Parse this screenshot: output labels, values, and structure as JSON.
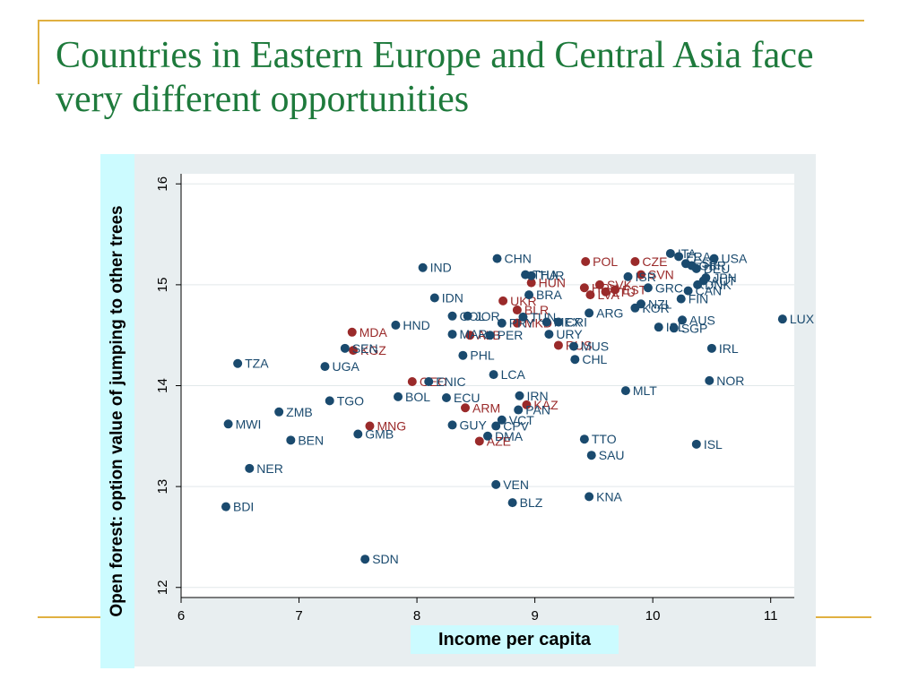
{
  "slide": {
    "title": "Countries in Eastern Europe and Central Asia face very different opportunities"
  },
  "colors": {
    "title": "#1e7a3c",
    "frame": "#e0b040",
    "panel": "#e8eef0",
    "label_box": "#ccfbff",
    "other_countries": "#1a4a6e",
    "eca_countries": "#9a2a2a"
  },
  "chart_data": {
    "type": "scatter",
    "title": "",
    "xlabel": "Income per capita",
    "ylabel": "Open forest: option value of jumping to other trees",
    "xlim": [
      6,
      11.2
    ],
    "ylim": [
      11.9,
      16.1
    ],
    "xticks": [
      6,
      7,
      8,
      9,
      10,
      11
    ],
    "yticks": [
      12,
      13,
      14,
      15,
      16
    ],
    "grid": true,
    "legend": "none",
    "series": [
      {
        "group": "eca",
        "points": [
          {
            "label": "POL",
            "x": 9.43,
            "y": 15.23
          },
          {
            "label": "CZE",
            "x": 9.85,
            "y": 15.23
          },
          {
            "label": "SVN",
            "x": 9.9,
            "y": 15.1
          },
          {
            "label": "HUN",
            "x": 8.97,
            "y": 15.02
          },
          {
            "label": "HRV",
            "x": 9.42,
            "y": 14.97
          },
          {
            "label": "SVK",
            "x": 9.55,
            "y": 15.0
          },
          {
            "label": "EST",
            "x": 9.68,
            "y": 14.95
          },
          {
            "label": "LTU",
            "x": 9.6,
            "y": 14.93
          },
          {
            "label": "LVA",
            "x": 9.47,
            "y": 14.9
          },
          {
            "label": "UKR",
            "x": 8.73,
            "y": 14.84
          },
          {
            "label": "BLR",
            "x": 8.85,
            "y": 14.75
          },
          {
            "label": "MKD",
            "x": 8.85,
            "y": 14.62
          },
          {
            "label": "ALB",
            "x": 8.45,
            "y": 14.5
          },
          {
            "label": "RUS",
            "x": 9.2,
            "y": 14.4
          },
          {
            "label": "MDA",
            "x": 7.45,
            "y": 14.53
          },
          {
            "label": "KGZ",
            "x": 7.46,
            "y": 14.35
          },
          {
            "label": "GEO",
            "x": 7.96,
            "y": 14.04
          },
          {
            "label": "ARM",
            "x": 8.41,
            "y": 13.78
          },
          {
            "label": "KAZ",
            "x": 8.93,
            "y": 13.81
          },
          {
            "label": "MNG",
            "x": 7.6,
            "y": 13.6
          },
          {
            "label": "AZE",
            "x": 8.53,
            "y": 13.45
          }
        ]
      },
      {
        "group": "other",
        "points": [
          {
            "label": "CHN",
            "x": 8.68,
            "y": 15.26
          },
          {
            "label": "IND",
            "x": 8.05,
            "y": 15.17
          },
          {
            "label": "THA",
            "x": 8.92,
            "y": 15.1
          },
          {
            "label": "TUR",
            "x": 8.97,
            "y": 15.09
          },
          {
            "label": "BRA",
            "x": 8.95,
            "y": 14.9
          },
          {
            "label": "IDN",
            "x": 8.15,
            "y": 14.87
          },
          {
            "label": "COL",
            "x": 8.3,
            "y": 14.69
          },
          {
            "label": "JOR",
            "x": 8.43,
            "y": 14.69
          },
          {
            "label": "TUN",
            "x": 8.9,
            "y": 14.68
          },
          {
            "label": "MEX",
            "x": 9.1,
            "y": 14.63
          },
          {
            "label": "CRI",
            "x": 9.2,
            "y": 14.63
          },
          {
            "label": "ARG",
            "x": 9.46,
            "y": 14.72
          },
          {
            "label": "PRY",
            "x": 8.72,
            "y": 14.62
          },
          {
            "label": "HND",
            "x": 7.82,
            "y": 14.6
          },
          {
            "label": "MAR",
            "x": 8.3,
            "y": 14.51
          },
          {
            "label": "PER",
            "x": 8.62,
            "y": 14.5
          },
          {
            "label": "URY",
            "x": 9.12,
            "y": 14.51
          },
          {
            "label": "MUS",
            "x": 9.33,
            "y": 14.39
          },
          {
            "label": "CHL",
            "x": 9.34,
            "y": 14.26
          },
          {
            "label": "SEN",
            "x": 7.39,
            "y": 14.37
          },
          {
            "label": "PHL",
            "x": 8.39,
            "y": 14.3
          },
          {
            "label": "TZA",
            "x": 6.48,
            "y": 14.22
          },
          {
            "label": "UGA",
            "x": 7.22,
            "y": 14.19
          },
          {
            "label": "LCA",
            "x": 8.65,
            "y": 14.11
          },
          {
            "label": "ENIC",
            "x": 8.1,
            "y": 14.04
          },
          {
            "label": "BOL",
            "x": 7.84,
            "y": 13.89
          },
          {
            "label": "ECU",
            "x": 8.25,
            "y": 13.88
          },
          {
            "label": "IRN",
            "x": 8.87,
            "y": 13.9
          },
          {
            "label": "TGO",
            "x": 7.26,
            "y": 13.85
          },
          {
            "label": "PAN",
            "x": 8.86,
            "y": 13.76
          },
          {
            "label": "ZMB",
            "x": 6.83,
            "y": 13.74
          },
          {
            "label": "VCT",
            "x": 8.72,
            "y": 13.66
          },
          {
            "label": "CPV",
            "x": 8.67,
            "y": 13.6
          },
          {
            "label": "GUY",
            "x": 8.3,
            "y": 13.61
          },
          {
            "label": "MWI",
            "x": 6.4,
            "y": 13.62
          },
          {
            "label": "GMB",
            "x": 7.5,
            "y": 13.52
          },
          {
            "label": "DMA",
            "x": 8.6,
            "y": 13.5
          },
          {
            "label": "BEN",
            "x": 6.93,
            "y": 13.46
          },
          {
            "label": "TTO",
            "x": 9.42,
            "y": 13.47
          },
          {
            "label": "SAU",
            "x": 9.48,
            "y": 13.31
          },
          {
            "label": "NER",
            "x": 6.58,
            "y": 13.18
          },
          {
            "label": "VEN",
            "x": 8.67,
            "y": 13.02
          },
          {
            "label": "KNA",
            "x": 9.46,
            "y": 12.9
          },
          {
            "label": "BLZ",
            "x": 8.81,
            "y": 12.84
          },
          {
            "label": "BDI",
            "x": 6.38,
            "y": 12.8
          },
          {
            "label": "SDN",
            "x": 7.56,
            "y": 12.28
          },
          {
            "label": "ITA",
            "x": 10.15,
            "y": 15.31
          },
          {
            "label": "FRA",
            "x": 10.22,
            "y": 15.28
          },
          {
            "label": "USA",
            "x": 10.52,
            "y": 15.26
          },
          {
            "label": "ESP",
            "x": 10.28,
            "y": 15.21
          },
          {
            "label": "GBR",
            "x": 10.33,
            "y": 15.19
          },
          {
            "label": "DEU",
            "x": 10.37,
            "y": 15.16
          },
          {
            "label": "ISR",
            "x": 9.79,
            "y": 15.08
          },
          {
            "label": "JPN",
            "x": 10.45,
            "y": 15.07
          },
          {
            "label": "AUT",
            "x": 10.43,
            "y": 15.04
          },
          {
            "label": "DNK",
            "x": 10.38,
            "y": 15.0
          },
          {
            "label": "GRC",
            "x": 9.96,
            "y": 14.97
          },
          {
            "label": "CAN",
            "x": 10.3,
            "y": 14.94
          },
          {
            "label": "FIN",
            "x": 10.24,
            "y": 14.86
          },
          {
            "label": "NZL",
            "x": 9.9,
            "y": 14.81
          },
          {
            "label": "KOR",
            "x": 9.85,
            "y": 14.77
          },
          {
            "label": "AUS",
            "x": 10.25,
            "y": 14.65
          },
          {
            "label": "ISL",
            "x": 10.05,
            "y": 14.58
          },
          {
            "label": "SGP",
            "x": 10.18,
            "y": 14.57
          },
          {
            "label": "IRL",
            "x": 10.5,
            "y": 14.37
          },
          {
            "label": "NOR",
            "x": 10.48,
            "y": 14.05
          },
          {
            "label": "MLT",
            "x": 9.77,
            "y": 13.95
          },
          {
            "label": "ISL",
            "x": 10.37,
            "y": 13.42
          },
          {
            "label": "LUX",
            "x": 11.1,
            "y": 14.66
          }
        ]
      }
    ]
  }
}
